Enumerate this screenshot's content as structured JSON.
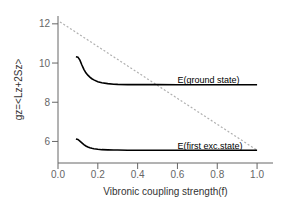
{
  "chart_data": {
    "type": "line",
    "xlabel": "Vibronic coupling strength(f)",
    "ylabel": "gz=<Lz+2Sz>",
    "xlim": [
      0.0,
      1.08
    ],
    "ylim": [
      4.9,
      12.4
    ],
    "xticks": [
      {
        "value": 0.0,
        "label": "0.0"
      },
      0.2,
      0.4,
      0.6,
      0.8,
      {
        "value": 1.0,
        "label": "1.0"
      }
    ],
    "yticks": [
      6,
      8,
      10,
      12
    ],
    "series": [
      {
        "color": "#b0b0b0",
        "line_style": "dotted",
        "x": [
          0.01,
          1.0
        ],
        "values": [
          12.1,
          5.55
        ]
      },
      {
        "color": "#000000",
        "line_style": "solid",
        "x": [
          0.09,
          0.1,
          0.11,
          0.12,
          0.13,
          0.14,
          0.15,
          0.16,
          0.17,
          0.18,
          0.2,
          0.22,
          0.25,
          0.28,
          0.3,
          0.35,
          0.4,
          0.5,
          0.6,
          0.7,
          0.8,
          0.9,
          1.0
        ],
        "values": [
          10.32,
          10.3,
          10.15,
          9.9,
          9.68,
          9.5,
          9.38,
          9.28,
          9.2,
          9.14,
          9.05,
          8.99,
          8.95,
          8.92,
          8.91,
          8.9,
          8.9,
          8.9,
          8.89,
          8.89,
          8.89,
          8.89,
          8.89
        ]
      },
      {
        "color": "#000000",
        "line_style": "solid",
        "x": [
          0.09,
          0.1,
          0.11,
          0.12,
          0.13,
          0.14,
          0.15,
          0.16,
          0.17,
          0.18,
          0.2,
          0.22,
          0.25,
          0.28,
          0.3,
          0.35,
          0.4,
          0.5,
          0.6,
          0.7,
          0.8,
          0.9,
          1.0
        ],
        "values": [
          6.12,
          6.1,
          6.02,
          5.93,
          5.84,
          5.77,
          5.72,
          5.68,
          5.65,
          5.63,
          5.6,
          5.58,
          5.57,
          5.56,
          5.56,
          5.55,
          5.55,
          5.55,
          5.55,
          5.55,
          5.55,
          5.55,
          5.55
        ]
      }
    ],
    "annotations": [
      {
        "text": "E(ground state)",
        "x": 0.6,
        "y": 9.15
      },
      {
        "text": "E(first exc.state)",
        "x": 0.6,
        "y": 5.78
      }
    ],
    "background_color": "#ffffff"
  }
}
